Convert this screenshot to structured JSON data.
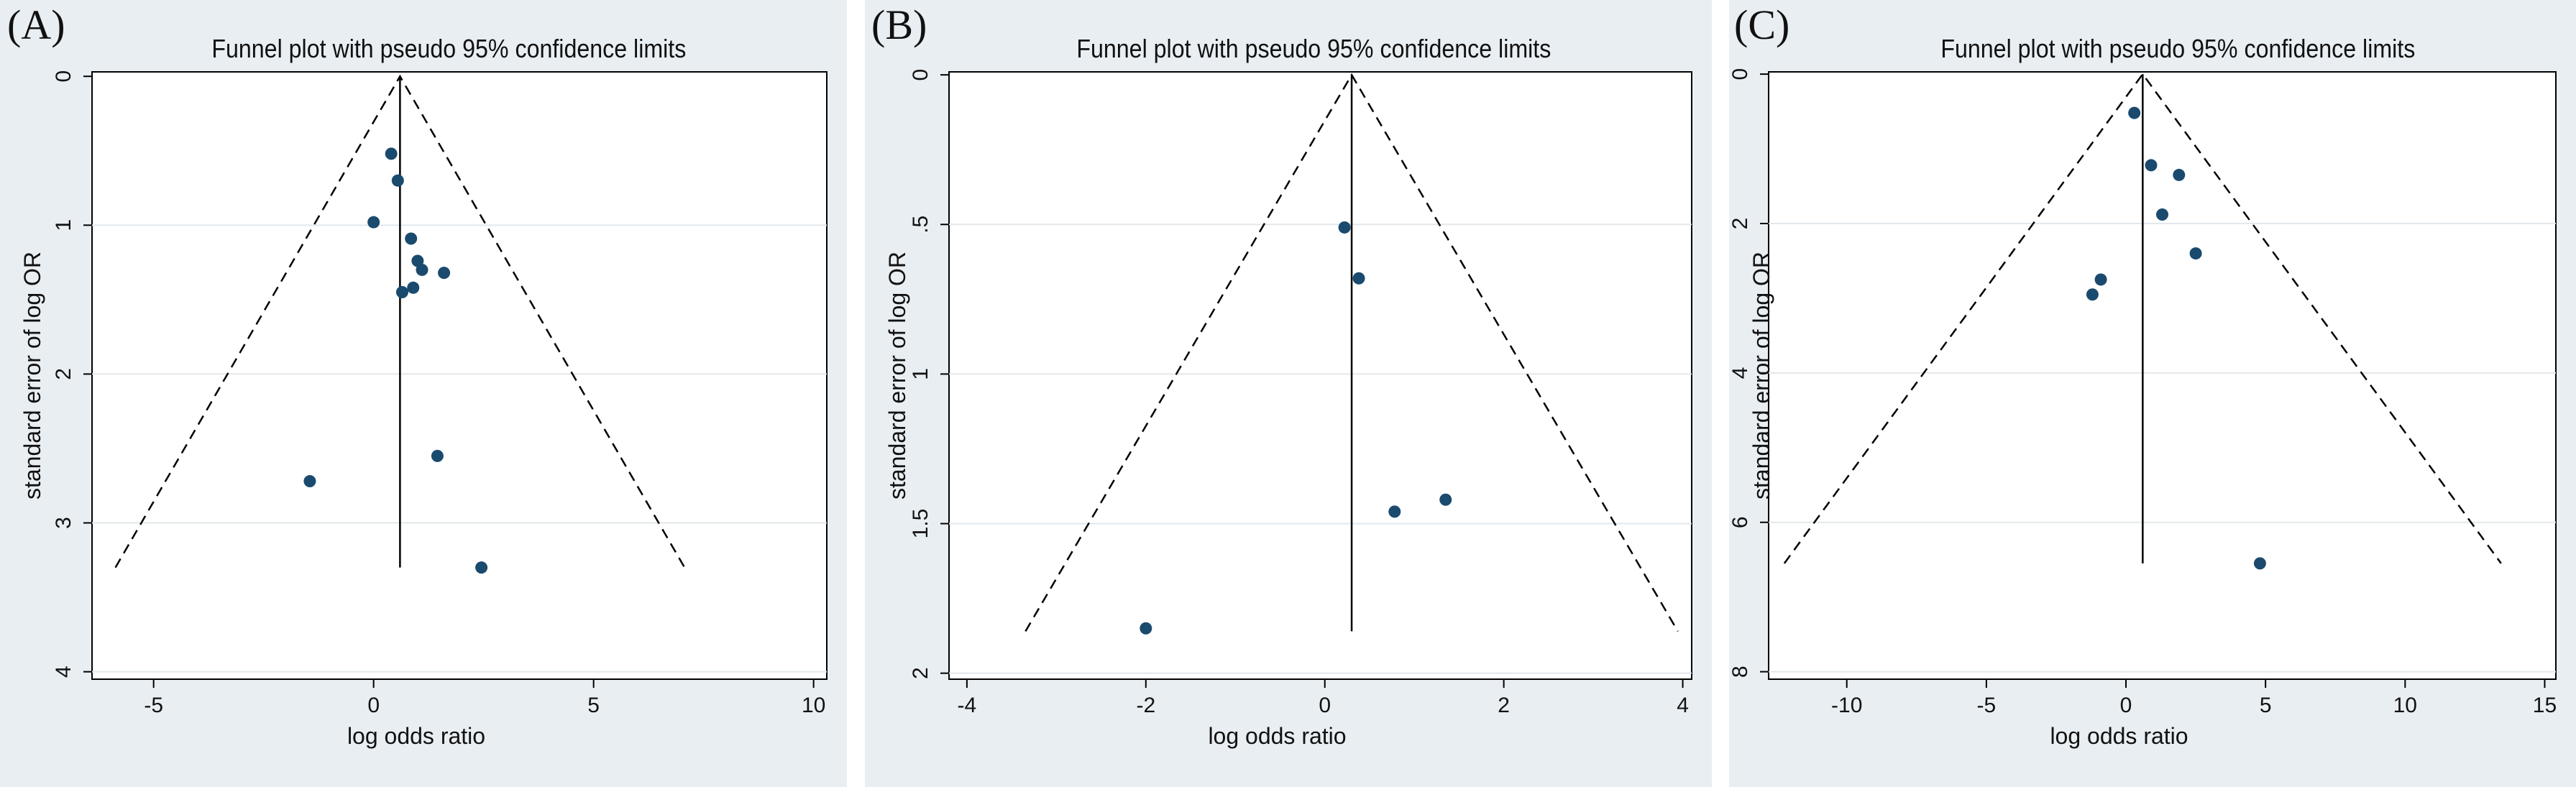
{
  "chart_data": [
    {
      "panel_label": "(A)",
      "type": "scatter",
      "title": "Funnel plot with pseudo 95% confidence limits",
      "xlabel": "log odds ratio",
      "ylabel": "standard error of log OR",
      "xlim": [
        -6.4,
        10.3
      ],
      "ylim": [
        4.05,
        -0.03
      ],
      "y_reversed": true,
      "xticks": [
        -5,
        0,
        5,
        10
      ],
      "xtick_labels": [
        "-5",
        "0",
        "5",
        "10"
      ],
      "yticks": [
        0,
        1,
        2,
        3,
        4
      ],
      "ytick_labels": [
        "0",
        "1",
        "2",
        "3",
        "4"
      ],
      "pooled_estimate": 0.6,
      "funnel_max_se": 3.3,
      "points": [
        {
          "x": 0.4,
          "y": 0.52
        },
        {
          "x": 0.55,
          "y": 0.7
        },
        {
          "x": 0.0,
          "y": 0.98
        },
        {
          "x": 0.85,
          "y": 1.09
        },
        {
          "x": 1.0,
          "y": 1.24
        },
        {
          "x": 1.1,
          "y": 1.3
        },
        {
          "x": 1.6,
          "y": 1.32
        },
        {
          "x": 0.9,
          "y": 1.42
        },
        {
          "x": 0.65,
          "y": 1.45
        },
        {
          "x": 1.45,
          "y": 2.55
        },
        {
          "x": -1.45,
          "y": 2.72
        },
        {
          "x": 2.45,
          "y": 3.3
        }
      ]
    },
    {
      "panel_label": "(B)",
      "type": "scatter",
      "title": "Funnel plot with pseudo 95% confidence limits",
      "xlabel": "log odds ratio",
      "ylabel": "standard error of log OR",
      "xlim": [
        -4.2,
        4.1
      ],
      "ylim": [
        2.02,
        -0.01
      ],
      "y_reversed": true,
      "xticks": [
        -4,
        -2,
        0,
        2,
        4
      ],
      "xtick_labels": [
        "-4",
        "-2",
        "0",
        "2",
        "4"
      ],
      "yticks": [
        0,
        0.5,
        1,
        1.5,
        2
      ],
      "ytick_labels": [
        "0",
        ".5",
        "1",
        "1.5",
        "2"
      ],
      "pooled_estimate": 0.3,
      "funnel_max_se": 1.86,
      "points": [
        {
          "x": 0.22,
          "y": 0.51
        },
        {
          "x": 0.38,
          "y": 0.68
        },
        {
          "x": 1.35,
          "y": 1.42
        },
        {
          "x": 0.78,
          "y": 1.46
        },
        {
          "x": -2.0,
          "y": 1.85
        }
      ]
    },
    {
      "panel_label": "(C)",
      "type": "scatter",
      "title": "Funnel plot with pseudo 95% confidence limits",
      "xlabel": "log odds ratio",
      "ylabel": "standard error of log OR",
      "xlim": [
        -12.8,
        15.4
      ],
      "ylim": [
        8.1,
        -0.03
      ],
      "y_reversed": true,
      "xticks": [
        -10,
        -5,
        0,
        5,
        10,
        15
      ],
      "xtick_labels": [
        "-10",
        "-5",
        "0",
        "5",
        "10",
        "15"
      ],
      "yticks": [
        0,
        2,
        4,
        6,
        8
      ],
      "ytick_labels": [
        "0",
        "2",
        "4",
        "6",
        "8"
      ],
      "pooled_estimate": 0.6,
      "funnel_max_se": 6.55,
      "points": [
        {
          "x": 0.3,
          "y": 0.52
        },
        {
          "x": 0.9,
          "y": 1.22
        },
        {
          "x": 1.9,
          "y": 1.35
        },
        {
          "x": 1.3,
          "y": 1.88
        },
        {
          "x": 2.5,
          "y": 2.4
        },
        {
          "x": -0.9,
          "y": 2.75
        },
        {
          "x": -1.2,
          "y": 2.95
        },
        {
          "x": 4.8,
          "y": 6.55
        }
      ]
    }
  ]
}
